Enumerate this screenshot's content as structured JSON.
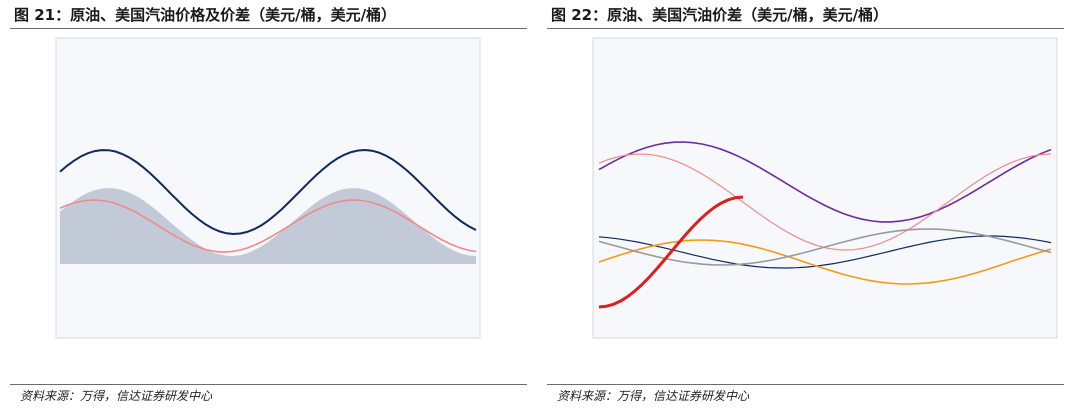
{
  "left": {
    "title": "图 21：原油、美国汽油价格及价差（美元/桶，美元/桶）",
    "source": "资料来源：万得，信达证券研发中心"
  },
  "right": {
    "title": "图 22：原油、美国汽油价差（美元/桶，美元/桶）",
    "source": "资料来源：万得，信达证券研发中心"
  },
  "colors": {
    "panel_fill": "#f7f8fb",
    "frame_line": "#d5d9e0",
    "area_fill": "#b9c2d1",
    "line_navy": "#0e2a5e",
    "line_salmon": "#f08a8a",
    "line_red": "#e11e1e",
    "line_purple": "#6a2ca0",
    "line_orange": "#f39a1a",
    "line_gray": "#9a9a9a"
  }
}
